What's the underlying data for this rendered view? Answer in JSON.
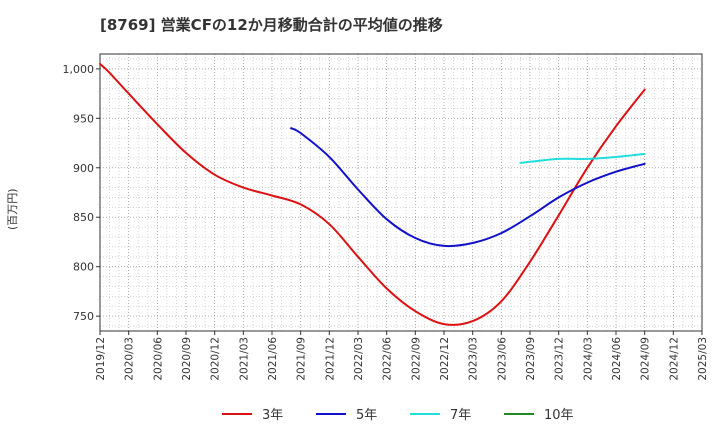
{
  "chart_data": {
    "type": "line",
    "title": "[8769]  営業CFの12か月移動合計の平均値の推移",
    "ylabel": "(百万円)",
    "xlabel": "",
    "ylim": [
      735,
      1015
    ],
    "y_ticks": [
      750,
      800,
      850,
      900,
      950,
      1000
    ],
    "y_tick_labels": [
      "750",
      "800",
      "850",
      "900",
      "950",
      "1,000"
    ],
    "x_range": [
      "2019-12",
      "2025-03"
    ],
    "x_tick_labels": [
      "2019/12",
      "2020/03",
      "2020/06",
      "2020/09",
      "2020/12",
      "2021/03",
      "2021/06",
      "2021/09",
      "2021/12",
      "2022/03",
      "2022/06",
      "2022/09",
      "2022/12",
      "2023/03",
      "2023/06",
      "2023/09",
      "2023/12",
      "2024/03",
      "2024/06",
      "2024/09",
      "2024/12",
      "2025/03"
    ],
    "grid": true,
    "legend_position": "bottom",
    "series": [
      {
        "name": "3年",
        "color": "#dd1111",
        "points": [
          [
            "2019-12",
            1005
          ],
          [
            "2020-01",
            996
          ],
          [
            "2020-03",
            975
          ],
          [
            "2020-06",
            944
          ],
          [
            "2020-09",
            915
          ],
          [
            "2020-12",
            893
          ],
          [
            "2021-03",
            880
          ],
          [
            "2021-06",
            872
          ],
          [
            "2021-09",
            863
          ],
          [
            "2021-12",
            843
          ],
          [
            "2022-03",
            810
          ],
          [
            "2022-06",
            778
          ],
          [
            "2022-09",
            755
          ],
          [
            "2022-12",
            742
          ],
          [
            "2023-03",
            745
          ],
          [
            "2023-06",
            765
          ],
          [
            "2023-09",
            805
          ],
          [
            "2023-12",
            852
          ],
          [
            "2024-03",
            900
          ],
          [
            "2024-06",
            942
          ],
          [
            "2024-09",
            979
          ]
        ]
      },
      {
        "name": "5年",
        "color": "#1111cc",
        "points": [
          [
            "2021-08",
            940
          ],
          [
            "2021-09",
            935
          ],
          [
            "2021-12",
            911
          ],
          [
            "2022-03",
            878
          ],
          [
            "2022-06",
            848
          ],
          [
            "2022-09",
            829
          ],
          [
            "2022-12",
            821
          ],
          [
            "2023-03",
            824
          ],
          [
            "2023-06",
            834
          ],
          [
            "2023-09",
            851
          ],
          [
            "2023-12",
            870
          ],
          [
            "2024-03",
            885
          ],
          [
            "2024-06",
            896
          ],
          [
            "2024-09",
            904
          ]
        ]
      },
      {
        "name": "7年",
        "color": "#22dddd",
        "points": [
          [
            "2023-08",
            905
          ],
          [
            "2023-09",
            906
          ],
          [
            "2023-12",
            909
          ],
          [
            "2024-03",
            909
          ],
          [
            "2024-06",
            911
          ],
          [
            "2024-09",
            914
          ]
        ]
      },
      {
        "name": "10年",
        "color": "#228822",
        "points": []
      }
    ]
  }
}
